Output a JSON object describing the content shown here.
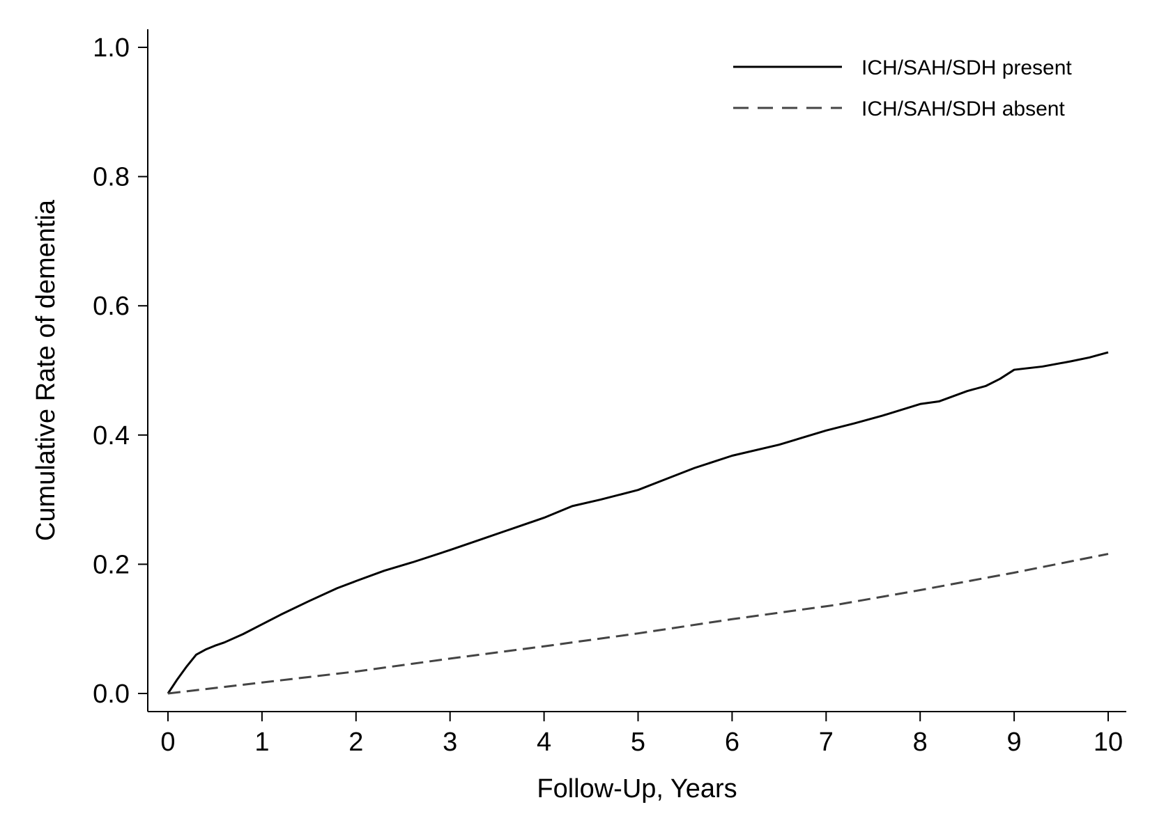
{
  "chart_data": {
    "type": "line",
    "title": "",
    "xlabel": "Follow-Up, Years",
    "ylabel": "Cumulative Rate of dementia",
    "xlim": [
      0,
      10
    ],
    "ylim": [
      0,
      1.0
    ],
    "x_ticks": [
      0,
      1,
      2,
      3,
      4,
      5,
      6,
      7,
      8,
      9,
      10
    ],
    "x_tick_labels": [
      "0",
      "1",
      "2",
      "3",
      "4",
      "5",
      "6",
      "7",
      "8",
      "9",
      "10"
    ],
    "y_ticks": [
      0.0,
      0.2,
      0.4,
      0.6,
      0.8,
      1.0
    ],
    "y_tick_labels": [
      "0.0",
      "0.2",
      "0.4",
      "0.6",
      "0.8",
      "1.0"
    ],
    "grid": false,
    "legend_position": "top-right",
    "series": [
      {
        "name": "ICH/SAH/SDH present",
        "line_style": "solid",
        "color": "#000000",
        "x": [
          0,
          0.1,
          0.2,
          0.3,
          0.4,
          0.5,
          0.6,
          0.8,
          1.0,
          1.2,
          1.5,
          1.8,
          2.0,
          2.3,
          2.6,
          3.0,
          3.3,
          3.6,
          4.0,
          4.3,
          4.6,
          5.0,
          5.3,
          5.6,
          6.0,
          6.5,
          7.0,
          7.3,
          7.6,
          8.0,
          8.2,
          8.5,
          8.7,
          8.85,
          9.0,
          9.3,
          9.6,
          9.8,
          10.0
        ],
        "y": [
          0.0,
          0.022,
          0.042,
          0.06,
          0.068,
          0.074,
          0.079,
          0.092,
          0.107,
          0.122,
          0.143,
          0.163,
          0.174,
          0.19,
          0.203,
          0.222,
          0.237,
          0.252,
          0.272,
          0.29,
          0.3,
          0.315,
          0.332,
          0.349,
          0.368,
          0.385,
          0.407,
          0.418,
          0.43,
          0.448,
          0.452,
          0.468,
          0.476,
          0.487,
          0.501,
          0.506,
          0.514,
          0.52,
          0.528
        ]
      },
      {
        "name": "ICH/SAH/SDH absent",
        "line_style": "dashed",
        "color": "#444444",
        "x": [
          0,
          1,
          2,
          3,
          4,
          5,
          6,
          7,
          7.1,
          8,
          9,
          10
        ],
        "y": [
          0.0,
          0.017,
          0.034,
          0.054,
          0.073,
          0.093,
          0.115,
          0.135,
          0.137,
          0.16,
          0.187,
          0.216
        ]
      }
    ]
  }
}
